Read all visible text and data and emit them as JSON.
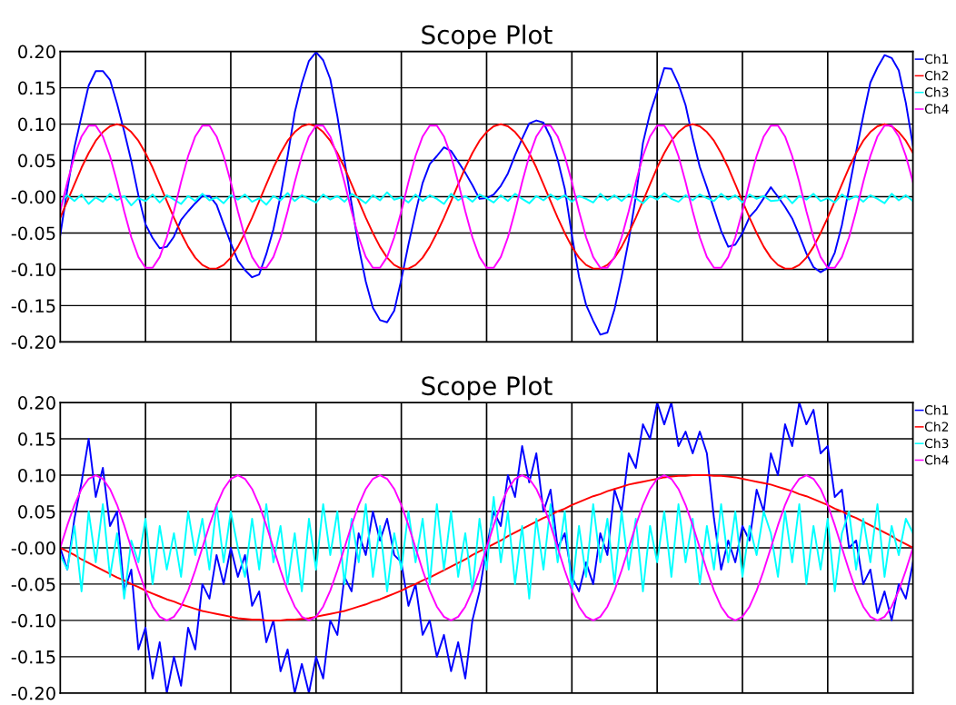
{
  "chart_data": [
    {
      "type": "line",
      "title": "Scope Plot",
      "ylim": [
        -0.2,
        0.2
      ],
      "categories": [
        null,
        null,
        null,
        null,
        null,
        null,
        null,
        null,
        null,
        null,
        null,
        null,
        null,
        null,
        null,
        null,
        null,
        null,
        null,
        null,
        null,
        null,
        null,
        null,
        null,
        null,
        null,
        null,
        null,
        null,
        null,
        null,
        null,
        null,
        null,
        null,
        null,
        null,
        null,
        null,
        null,
        null,
        null,
        null,
        null,
        null,
        null,
        null,
        null,
        null,
        null,
        null,
        null,
        null,
        null,
        null,
        null,
        null,
        null,
        null,
        null,
        null,
        null,
        null,
        null,
        null,
        null,
        null,
        null,
        null,
        null,
        null,
        null,
        null,
        null,
        null,
        null,
        null,
        null,
        null,
        null,
        null,
        null,
        null,
        null,
        null,
        null,
        null,
        null,
        null,
        null,
        null,
        null,
        null,
        null,
        null,
        null,
        null,
        null,
        null,
        null,
        null,
        null,
        null,
        null,
        null,
        null,
        null,
        null,
        null,
        null,
        null,
        null,
        null,
        null,
        null,
        null,
        null,
        null,
        null,
        null
      ],
      "yticks": [
        {
          "value": -0.2,
          "label": "-0.20"
        },
        {
          "value": -0.15,
          "label": "-0.15"
        },
        {
          "value": -0.1,
          "label": "-0.10"
        },
        {
          "value": -0.05,
          "label": "-0.05"
        },
        {
          "value": 0,
          "label": "-0.00"
        },
        {
          "value": 0.05,
          "label": "0.05"
        },
        {
          "value": 0.1,
          "label": "0.10"
        },
        {
          "value": 0.15,
          "label": "0.15"
        },
        {
          "value": 0.2,
          "label": "0.20"
        }
      ],
      "tick_labels": "y",
      "grid": true,
      "legend": "right",
      "marker": "none",
      "line_style": "solid",
      "series": [
        {
          "name": "Ch1",
          "color": "#0000ff",
          "values": [
            -0.053,
            0.01,
            0.068,
            0.111,
            0.153,
            0.173,
            0.173,
            0.161,
            0.128,
            0.09,
            0.049,
            0.002,
            -0.038,
            -0.057,
            -0.071,
            -0.069,
            -0.055,
            -0.032,
            -0.02,
            -0.009,
            0.001,
            0.001,
            -0.011,
            -0.038,
            -0.064,
            -0.088,
            -0.101,
            -0.111,
            -0.107,
            -0.079,
            -0.045,
            0.001,
            0.056,
            0.116,
            0.156,
            0.187,
            0.199,
            0.188,
            0.162,
            0.111,
            0.05,
            -0.01,
            -0.069,
            -0.117,
            -0.153,
            -0.17,
            -0.173,
            -0.157,
            -0.114,
            -0.066,
            -0.022,
            0.019,
            0.045,
            0.056,
            0.068,
            0.063,
            0.048,
            0.033,
            0.016,
            -0.003,
            -0.002,
            0.003,
            0.015,
            0.032,
            0.057,
            0.08,
            0.101,
            0.105,
            0.102,
            0.082,
            0.051,
            0.011,
            -0.053,
            -0.11,
            -0.149,
            -0.171,
            -0.19,
            -0.187,
            -0.155,
            -0.11,
            -0.06,
            0,
            0.074,
            0.115,
            0.145,
            0.177,
            0.176,
            0.155,
            0.126,
            0.081,
            0.041,
            0.013,
            -0.017,
            -0.047,
            -0.069,
            -0.066,
            -0.05,
            -0.028,
            -0.017,
            -0.002,
            0.013,
            0,
            -0.014,
            -0.03,
            -0.053,
            -0.078,
            -0.097,
            -0.104,
            -0.098,
            -0.077,
            -0.039,
            0.011,
            0.062,
            0.111,
            0.157,
            0.178,
            0.195,
            0.191,
            0.174,
            0.129,
            0.07
          ]
        },
        {
          "name": "Ch2",
          "color": "#ff0000",
          "values": [
            -0.029,
            -0.006,
            0.017,
            0.04,
            0.06,
            0.077,
            0.089,
            0.097,
            0.1,
            0.097,
            0.089,
            0.077,
            0.06,
            0.04,
            0.017,
            -0.006,
            -0.029,
            -0.05,
            -0.069,
            -0.084,
            -0.094,
            -0.099,
            -0.099,
            -0.094,
            -0.084,
            -0.069,
            -0.05,
            -0.029,
            -0.006,
            0.017,
            0.04,
            0.06,
            0.077,
            0.089,
            0.097,
            0.1,
            0.097,
            0.089,
            0.077,
            0.06,
            0.04,
            0.017,
            -0.006,
            -0.029,
            -0.05,
            -0.069,
            -0.084,
            -0.094,
            -0.099,
            -0.099,
            -0.094,
            -0.084,
            -0.069,
            -0.05,
            -0.029,
            -0.006,
            0.017,
            0.04,
            0.06,
            0.077,
            0.089,
            0.097,
            0.1,
            0.097,
            0.089,
            0.077,
            0.06,
            0.04,
            0.017,
            -0.006,
            -0.029,
            -0.05,
            -0.069,
            -0.084,
            -0.094,
            -0.099,
            -0.099,
            -0.094,
            -0.084,
            -0.069,
            -0.05,
            -0.029,
            -0.006,
            0.017,
            0.04,
            0.06,
            0.077,
            0.089,
            0.097,
            0.1,
            0.097,
            0.089,
            0.077,
            0.06,
            0.04,
            0.017,
            -0.006,
            -0.029,
            -0.05,
            -0.069,
            -0.084,
            -0.094,
            -0.099,
            -0.099,
            -0.094,
            -0.084,
            -0.069,
            -0.05,
            -0.029,
            -0.006,
            0.017,
            0.04,
            0.06,
            0.077,
            0.089,
            0.097,
            0.1,
            0.097,
            0.089,
            0.077,
            0.06
          ]
        },
        {
          "name": "Ch3",
          "color": "#00ffff",
          "values": [
            -0.008,
            0.002,
            -0.006,
            0.003,
            -0.01,
            -0.001,
            -0.007,
            0.004,
            -0.005,
            0.001,
            -0.012,
            -0.002,
            -0.006,
            0.003,
            -0.008,
            0.002,
            -0.004,
            -0.01,
            0.001,
            -0.006,
            0.004,
            -0.005,
            -0.001,
            -0.009,
            0.002,
            -0.004,
            0.003,
            -0.007,
            -0.002,
            -0.011,
            0.001,
            -0.005,
            0.005,
            -0.006,
            0.002,
            -0.003,
            -0.008,
            0.003,
            -0.004,
            0.001,
            -0.007,
            0.004,
            -0.002,
            -0.009,
            0.002,
            -0.005,
            0.006,
            -0.004,
            -0.001,
            -0.008,
            0.003,
            -0.006,
            0.002,
            -0.003,
            -0.01,
            0.004,
            -0.005,
            0.001,
            -0.007,
            0.003,
            -0.002,
            -0.008,
            0.002,
            -0.006,
            0.004,
            -0.003,
            -0.009,
            0.001,
            -0.005,
            0.003,
            -0.004,
            0.002,
            -0.007,
            0.001,
            -0.003,
            -0.008,
            0.004,
            -0.005,
            0.002,
            -0.006,
            0.003,
            -0.002,
            -0.009,
            0.001,
            -0.004,
            0.005,
            -0.003,
            -0.007,
            0.002,
            -0.005,
            0.003,
            -0.002,
            -0.006,
            0.004,
            -0.004,
            0.002,
            -0.008,
            0.003,
            -0.003,
            0.001,
            -0.006,
            -0.005,
            0.002,
            -0.009,
            0.001,
            -0.004,
            0.004,
            -0.006,
            -0.002,
            -0.008,
            0.003,
            -0.004,
            0.001,
            -0.007,
            0.002,
            -0.003,
            -0.009,
            0.004,
            -0.005,
            0.002,
            -0.006
          ]
        },
        {
          "name": "Ch4",
          "color": "#ff00ff",
          "values": [
            -0.02,
            0.02,
            0.056,
            0.083,
            0.098,
            0.098,
            0.083,
            0.056,
            0.02,
            -0.02,
            -0.056,
            -0.083,
            -0.098,
            -0.098,
            -0.083,
            -0.056,
            -0.02,
            0.02,
            0.056,
            0.083,
            0.098,
            0.098,
            0.083,
            0.056,
            0.02,
            -0.02,
            -0.056,
            -0.083,
            -0.098,
            -0.098,
            -0.083,
            -0.056,
            -0.02,
            0.02,
            0.056,
            0.083,
            0.098,
            0.098,
            0.083,
            0.056,
            0.02,
            -0.02,
            -0.056,
            -0.083,
            -0.098,
            -0.098,
            -0.083,
            -0.056,
            -0.02,
            0.02,
            0.056,
            0.083,
            0.098,
            0.098,
            0.083,
            0.056,
            0.02,
            -0.02,
            -0.056,
            -0.083,
            -0.098,
            -0.098,
            -0.083,
            -0.056,
            -0.02,
            0.02,
            0.056,
            0.083,
            0.098,
            0.098,
            0.083,
            0.056,
            0.02,
            -0.02,
            -0.056,
            -0.083,
            -0.098,
            -0.098,
            -0.083,
            -0.056,
            -0.02,
            0.02,
            0.056,
            0.083,
            0.098,
            0.098,
            0.083,
            0.056,
            0.02,
            -0.02,
            -0.056,
            -0.083,
            -0.098,
            -0.098,
            -0.083,
            -0.056,
            -0.02,
            0.02,
            0.056,
            0.083,
            0.098,
            0.098,
            0.083,
            0.056,
            0.02,
            -0.02,
            -0.056,
            -0.083,
            -0.098,
            -0.098,
            -0.083,
            -0.056,
            -0.02,
            0.02,
            0.056,
            0.083,
            0.098,
            0.098,
            0.083,
            0.056,
            0.02
          ]
        }
      ]
    },
    {
      "type": "line",
      "title": "Scope Plot",
      "ylim": [
        -0.2,
        0.2
      ],
      "categories": [
        null,
        null,
        null,
        null,
        null,
        null,
        null,
        null,
        null,
        null,
        null,
        null,
        null,
        null,
        null,
        null,
        null,
        null,
        null,
        null,
        null,
        null,
        null,
        null,
        null,
        null,
        null,
        null,
        null,
        null,
        null,
        null,
        null,
        null,
        null,
        null,
        null,
        null,
        null,
        null,
        null,
        null,
        null,
        null,
        null,
        null,
        null,
        null,
        null,
        null,
        null,
        null,
        null,
        null,
        null,
        null,
        null,
        null,
        null,
        null,
        null,
        null,
        null,
        null,
        null,
        null,
        null,
        null,
        null,
        null,
        null,
        null,
        null,
        null,
        null,
        null,
        null,
        null,
        null,
        null,
        null,
        null,
        null,
        null,
        null,
        null,
        null,
        null,
        null,
        null,
        null,
        null,
        null,
        null,
        null,
        null,
        null,
        null,
        null,
        null,
        null,
        null,
        null,
        null,
        null,
        null,
        null,
        null,
        null,
        null,
        null,
        null,
        null,
        null,
        null,
        null,
        null,
        null,
        null,
        null,
        null
      ],
      "yticks": [
        {
          "value": -0.2,
          "label": "-0.20"
        },
        {
          "value": -0.15,
          "label": "-0.15"
        },
        {
          "value": -0.1,
          "label": "-0.10"
        },
        {
          "value": -0.05,
          "label": "-0.05"
        },
        {
          "value": 0,
          "label": "-0.00"
        },
        {
          "value": 0.05,
          "label": "0.05"
        },
        {
          "value": 0.1,
          "label": "0.10"
        },
        {
          "value": 0.15,
          "label": "0.15"
        },
        {
          "value": 0.2,
          "label": "0.20"
        }
      ],
      "tick_labels": "y",
      "grid": true,
      "legend": "right",
      "marker": "none",
      "line_style": "solid",
      "series": [
        {
          "name": "Ch1",
          "color": "#0000ff",
          "values": [
            0,
            -0.03,
            0.04,
            0.09,
            0.15,
            0.07,
            0.11,
            0.03,
            0.05,
            -0.06,
            -0.03,
            -0.14,
            -0.11,
            -0.18,
            -0.13,
            -0.2,
            -0.15,
            -0.19,
            -0.11,
            -0.14,
            -0.05,
            -0.07,
            -0.01,
            -0.05,
            0,
            -0.04,
            -0.01,
            -0.08,
            -0.06,
            -0.13,
            -0.1,
            -0.17,
            -0.14,
            -0.2,
            -0.16,
            -0.2,
            -0.15,
            -0.18,
            -0.1,
            -0.12,
            -0.04,
            -0.06,
            0.02,
            -0.01,
            0.05,
            0.01,
            0.04,
            -0.01,
            -0.02,
            -0.08,
            -0.05,
            -0.12,
            -0.1,
            -0.15,
            -0.12,
            -0.17,
            -0.13,
            -0.18,
            -0.1,
            -0.06,
            0,
            0.05,
            0.03,
            0.1,
            0.07,
            0.14,
            0.09,
            0.13,
            0.05,
            0.08,
            0,
            0.02,
            -0.04,
            -0.06,
            -0.02,
            -0.05,
            0.02,
            -0.01,
            0.08,
            0.05,
            0.13,
            0.11,
            0.17,
            0.15,
            0.2,
            0.17,
            0.2,
            0.14,
            0.16,
            0.13,
            0.16,
            0.13,
            0.04,
            -0.03,
            0.01,
            -0.02,
            0.03,
            0.01,
            0.08,
            0.05,
            0.13,
            0.1,
            0.17,
            0.14,
            0.2,
            0.17,
            0.19,
            0.13,
            0.14,
            0.07,
            0.08,
            0,
            0.01,
            -0.05,
            -0.03,
            -0.09,
            -0.06,
            -0.1,
            -0.05,
            -0.07,
            -0.02
          ]
        },
        {
          "name": "Ch2",
          "color": "#ff0000",
          "values": [
            0,
            -0.005,
            -0.01,
            -0.016,
            -0.021,
            -0.026,
            -0.031,
            -0.036,
            -0.041,
            -0.045,
            -0.05,
            -0.054,
            -0.059,
            -0.063,
            -0.067,
            -0.071,
            -0.074,
            -0.078,
            -0.081,
            -0.084,
            -0.087,
            -0.089,
            -0.091,
            -0.093,
            -0.095,
            -0.097,
            -0.098,
            -0.099,
            -0.099,
            -0.1,
            -0.1,
            -0.1,
            -0.099,
            -0.099,
            -0.098,
            -0.097,
            -0.095,
            -0.093,
            -0.091,
            -0.089,
            -0.087,
            -0.084,
            -0.081,
            -0.078,
            -0.074,
            -0.071,
            -0.067,
            -0.063,
            -0.059,
            -0.054,
            -0.05,
            -0.045,
            -0.041,
            -0.036,
            -0.031,
            -0.026,
            -0.021,
            -0.016,
            -0.01,
            -0.005,
            0,
            0.005,
            0.01,
            0.016,
            0.021,
            0.026,
            0.031,
            0.036,
            0.041,
            0.045,
            0.05,
            0.054,
            0.059,
            0.063,
            0.067,
            0.071,
            0.074,
            0.078,
            0.081,
            0.084,
            0.087,
            0.089,
            0.091,
            0.093,
            0.095,
            0.097,
            0.098,
            0.099,
            0.099,
            0.1,
            0.1,
            0.1,
            0.099,
            0.099,
            0.098,
            0.097,
            0.095,
            0.093,
            0.091,
            0.089,
            0.087,
            0.084,
            0.081,
            0.078,
            0.074,
            0.071,
            0.067,
            0.063,
            0.059,
            0.054,
            0.05,
            0.045,
            0.041,
            0.036,
            0.031,
            0.026,
            0.021,
            0.016,
            0.01,
            0.005,
            0
          ]
        },
        {
          "name": "Ch3",
          "color": "#00ffff",
          "values": [
            -0.01,
            -0.03,
            0.03,
            -0.06,
            0.05,
            -0.02,
            0.06,
            -0.04,
            0.02,
            -0.07,
            0.01,
            -0.02,
            0.04,
            -0.05,
            0.03,
            -0.03,
            0.02,
            -0.04,
            0.05,
            -0.01,
            0.04,
            -0.03,
            0.06,
            -0.02,
            0.05,
            0,
            -0.04,
            0.04,
            -0.03,
            0.06,
            -0.02,
            0.03,
            -0.05,
            0.02,
            -0.06,
            0.04,
            -0.03,
            0.06,
            -0.01,
            0.05,
            -0.05,
            0.04,
            -0.02,
            0.06,
            -0.04,
            0.03,
            -0.06,
            0.02,
            -0.03,
            0.05,
            -0.02,
            0.04,
            -0.05,
            0.06,
            -0.03,
            0.05,
            -0.04,
            0.02,
            -0.06,
            0.04,
            -0.03,
            0.07,
            -0.02,
            0.05,
            -0.05,
            0.03,
            -0.07,
            0.04,
            -0.03,
            0.06,
            -0.02,
            0.05,
            -0.06,
            0.03,
            -0.04,
            0.06,
            -0.02,
            0.04,
            -0.05,
            0.05,
            -0.03,
            0.04,
            -0.06,
            0.03,
            -0.02,
            0.05,
            -0.04,
            0.06,
            -0.02,
            0.04,
            -0.05,
            0.03,
            -0.03,
            0.06,
            -0.02,
            0.05,
            -0.04,
            0.03,
            -0.01,
            0.05,
            0.02,
            -0.04,
            0.05,
            -0.02,
            0.06,
            -0.05,
            0.03,
            -0.03,
            0.04,
            -0.06,
            0.02,
            0.05,
            -0.03,
            0.04,
            -0.02,
            0.06,
            -0.04,
            0.03,
            -0.01,
            0.04,
            0.02
          ]
        },
        {
          "name": "Ch4",
          "color": "#ff00ff",
          "values": [
            0,
            0.031,
            0.059,
            0.081,
            0.095,
            0.1,
            0.095,
            0.081,
            0.059,
            0.031,
            0,
            -0.031,
            -0.059,
            -0.081,
            -0.095,
            -0.1,
            -0.095,
            -0.081,
            -0.059,
            -0.031,
            0,
            0.031,
            0.059,
            0.081,
            0.095,
            0.1,
            0.095,
            0.081,
            0.059,
            0.031,
            0,
            -0.031,
            -0.059,
            -0.081,
            -0.095,
            -0.1,
            -0.095,
            -0.081,
            -0.059,
            -0.031,
            0,
            0.031,
            0.059,
            0.081,
            0.095,
            0.1,
            0.095,
            0.081,
            0.059,
            0.031,
            0,
            -0.031,
            -0.059,
            -0.081,
            -0.095,
            -0.1,
            -0.095,
            -0.081,
            -0.059,
            -0.031,
            0,
            0.031,
            0.059,
            0.081,
            0.095,
            0.1,
            0.095,
            0.081,
            0.059,
            0.031,
            0,
            -0.031,
            -0.059,
            -0.081,
            -0.095,
            -0.1,
            -0.095,
            -0.081,
            -0.059,
            -0.031,
            0,
            0.031,
            0.059,
            0.081,
            0.095,
            0.1,
            0.095,
            0.081,
            0.059,
            0.031,
            0,
            -0.031,
            -0.059,
            -0.081,
            -0.095,
            -0.1,
            -0.095,
            -0.081,
            -0.059,
            -0.031,
            0,
            0.031,
            0.059,
            0.081,
            0.095,
            0.1,
            0.095,
            0.081,
            0.059,
            0.031,
            0,
            -0.031,
            -0.059,
            -0.081,
            -0.095,
            -0.1,
            -0.095,
            -0.081,
            -0.059,
            -0.031,
            0
          ]
        }
      ]
    }
  ]
}
